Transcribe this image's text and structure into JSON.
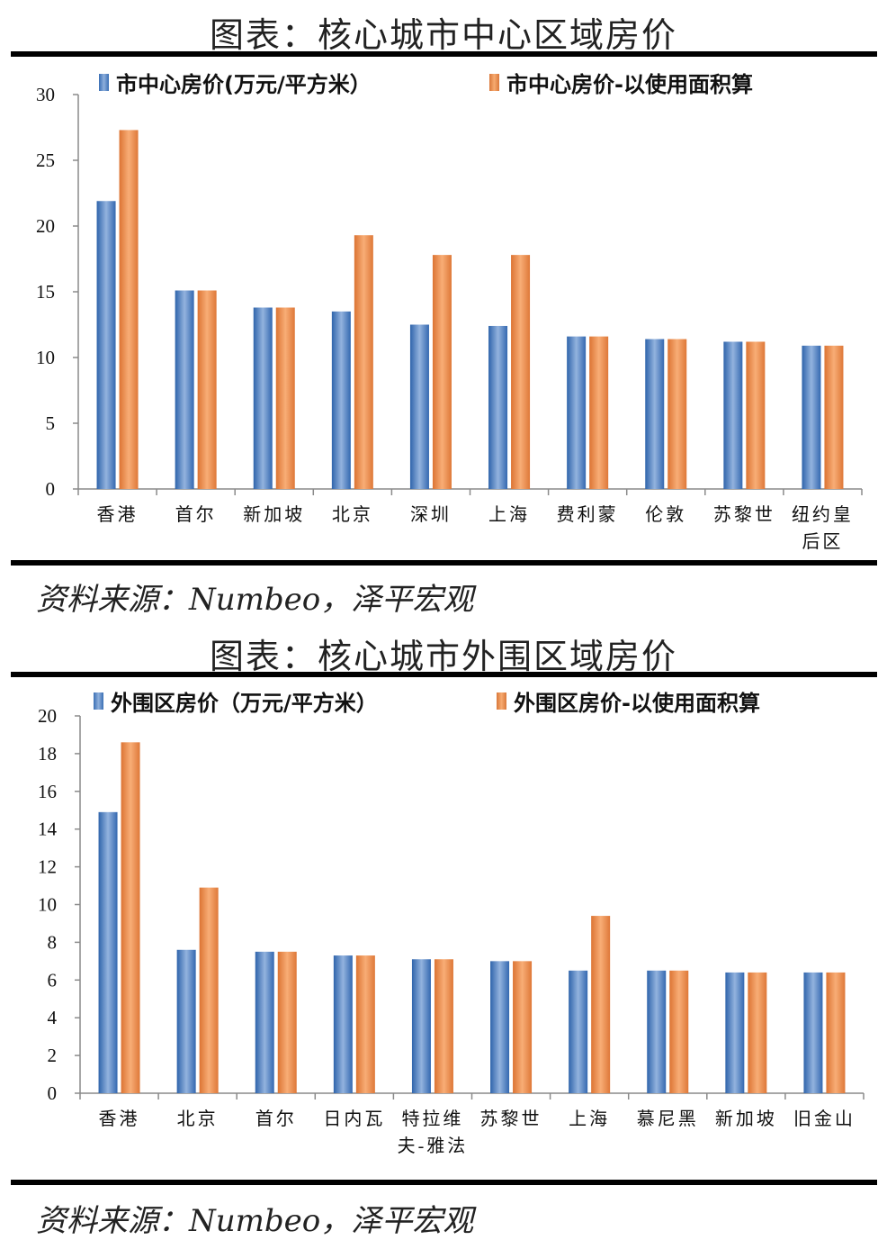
{
  "colors": {
    "series_blue": "#4a7cc0",
    "series_orange": "#ee8a48",
    "axis": "#8a8a8a",
    "rule": "#000000"
  },
  "chart1": {
    "figure_title": "图表：核心城市中心区域房价",
    "legend": [
      "市中心房价(万元/平方米）",
      "市中心房价-以使用面积算"
    ],
    "source": "资料来源：Numbeo，泽平宏观"
  },
  "chart2": {
    "figure_title": "图表：核心城市外围区域房价",
    "legend": [
      "外围区房价（万元/平方米）",
      "外围区房价-以使用面积算"
    ],
    "source": "资料来源：Numbeo，泽平宏观"
  },
  "chart_data": [
    {
      "type": "bar",
      "title": "图表：核心城市中心区域房价",
      "xlabel": "",
      "ylabel": "",
      "ylim": [
        0,
        30
      ],
      "yticks": [
        0,
        5,
        10,
        15,
        20,
        25,
        30
      ],
      "grid": false,
      "legend_position": "top",
      "categories": [
        "香港",
        "首尔",
        "新加坡",
        "北京",
        "深圳",
        "上海",
        "费利蒙",
        "伦敦",
        "苏黎世",
        "纽约皇后区"
      ],
      "series": [
        {
          "name": "市中心房价(万元/平方米）",
          "values": [
            21.9,
            15.1,
            13.8,
            13.5,
            12.5,
            12.4,
            11.6,
            11.4,
            11.2,
            10.9
          ]
        },
        {
          "name": "市中心房价-以使用面积算",
          "values": [
            27.3,
            15.1,
            13.8,
            19.3,
            17.8,
            17.8,
            11.6,
            11.4,
            11.2,
            10.9
          ]
        }
      ],
      "source": "资料来源：Numbeo，泽平宏观"
    },
    {
      "type": "bar",
      "title": "图表：核心城市外围区域房价",
      "xlabel": "",
      "ylabel": "",
      "ylim": [
        0,
        20
      ],
      "yticks": [
        0,
        2,
        4,
        6,
        8,
        10,
        12,
        14,
        16,
        18,
        20
      ],
      "grid": false,
      "legend_position": "top",
      "categories": [
        "香港",
        "北京",
        "首尔",
        "日内瓦",
        "特拉维夫-雅法",
        "苏黎世",
        "上海",
        "慕尼黑",
        "新加坡",
        "旧金山"
      ],
      "series": [
        {
          "name": "外围区房价（万元/平方米）",
          "values": [
            14.9,
            7.6,
            7.5,
            7.3,
            7.1,
            7.0,
            6.5,
            6.5,
            6.4,
            6.4
          ]
        },
        {
          "name": "外围区房价-以使用面积算",
          "values": [
            18.6,
            10.9,
            7.5,
            7.3,
            7.1,
            7.0,
            9.4,
            6.5,
            6.4,
            6.4
          ]
        }
      ],
      "source": "资料来源：Numbeo，泽平宏观"
    }
  ]
}
